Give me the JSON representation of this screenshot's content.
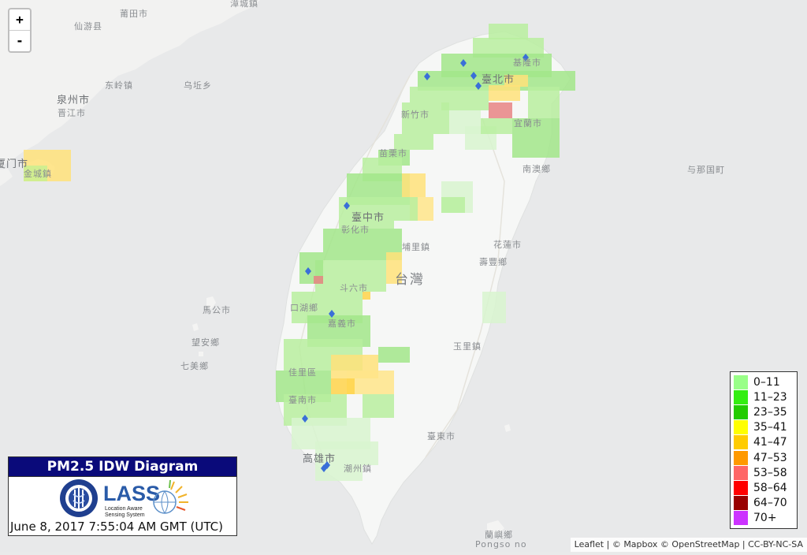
{
  "map": {
    "zoom_in_label": "+",
    "zoom_out_label": "-",
    "places": [
      {
        "name": "漳城鎮",
        "cls": ""
      },
      {
        "name": "莆田市",
        "cls": ""
      },
      {
        "name": "仙游县",
        "cls": ""
      },
      {
        "name": "东岭镇",
        "cls": ""
      },
      {
        "name": "乌坵乡",
        "cls": ""
      },
      {
        "name": "泉州市",
        "cls": "big"
      },
      {
        "name": "晋江市",
        "cls": ""
      },
      {
        "name": "厦门市",
        "cls": "big"
      },
      {
        "name": "金城鎮",
        "cls": ""
      },
      {
        "name": "基隆市",
        "cls": ""
      },
      {
        "name": "臺北市",
        "cls": "big"
      },
      {
        "name": "新竹市",
        "cls": ""
      },
      {
        "name": "宜蘭市",
        "cls": ""
      },
      {
        "name": "苗栗市",
        "cls": ""
      },
      {
        "name": "南澳鄉",
        "cls": ""
      },
      {
        "name": "与那国町",
        "cls": ""
      },
      {
        "name": "臺中市",
        "cls": "big"
      },
      {
        "name": "彰化市",
        "cls": ""
      },
      {
        "name": "埔里鎮",
        "cls": ""
      },
      {
        "name": "花蓮市",
        "cls": ""
      },
      {
        "name": "壽豐鄉",
        "cls": ""
      },
      {
        "name": "台灣",
        "cls": "xl"
      },
      {
        "name": "斗六市",
        "cls": ""
      },
      {
        "name": "口湖鄉",
        "cls": ""
      },
      {
        "name": "馬公市",
        "cls": ""
      },
      {
        "name": "嘉義市",
        "cls": ""
      },
      {
        "name": "望安鄉",
        "cls": ""
      },
      {
        "name": "七美鄉",
        "cls": ""
      },
      {
        "name": "玉里鎮",
        "cls": ""
      },
      {
        "name": "佳里區",
        "cls": ""
      },
      {
        "name": "臺南市",
        "cls": ""
      },
      {
        "name": "臺東市",
        "cls": ""
      },
      {
        "name": "高雄市",
        "cls": "big"
      },
      {
        "name": "潮州鎮",
        "cls": ""
      },
      {
        "name": "蘭嶼鄉",
        "cls": ""
      },
      {
        "name": "Pongso no",
        "cls": ""
      }
    ]
  },
  "legend": {
    "items": [
      {
        "label": "0–11",
        "color": "#99ff88"
      },
      {
        "label": "11–23",
        "color": "#33ee11"
      },
      {
        "label": "23–35",
        "color": "#22cc00"
      },
      {
        "label": "35–41",
        "color": "#ffff00"
      },
      {
        "label": "41–47",
        "color": "#ffcc00"
      },
      {
        "label": "47–53",
        "color": "#ff9900"
      },
      {
        "label": "53–58",
        "color": "#ff6666"
      },
      {
        "label": "58–64",
        "color": "#ff0000"
      },
      {
        "label": "64–70",
        "color": "#990000"
      },
      {
        "label": "70+",
        "color": "#cc33ff"
      }
    ]
  },
  "info": {
    "title": "PM2.5 IDW Diagram",
    "lass_text": "LASS",
    "lass_subtitle_1": "Location Aware",
    "lass_subtitle_2": "Sensing System",
    "datetime": "June 8, 2017 7:55:04 AM GMT (UTC)"
  },
  "attribution": "Leaflet | © Mapbox © OpenStreetMap | CC-BY-NC-SA"
}
